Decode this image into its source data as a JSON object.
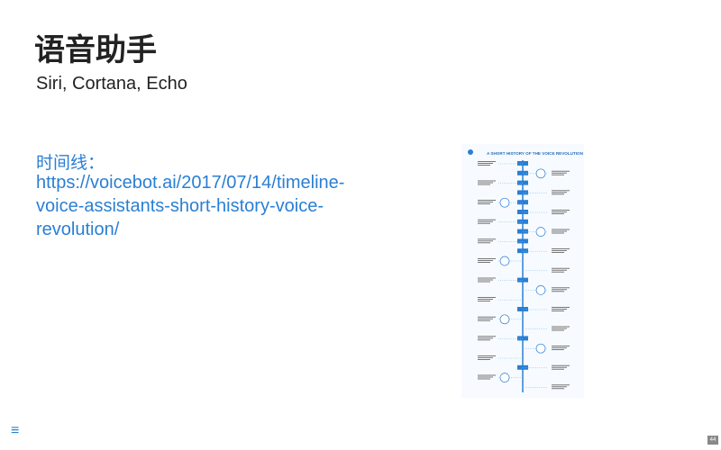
{
  "title": "语音助手",
  "subtitle": "Siri, Cortana, Echo",
  "link_label": "时间线：",
  "link": "https://voicebot.ai/2017/07/14/timeline-voice-assistants-short-history-voice-revolution/",
  "infographic": {
    "title": "A SHORT HISTORY OF THE VOICE REVOLUTION"
  },
  "page_number": "44"
}
